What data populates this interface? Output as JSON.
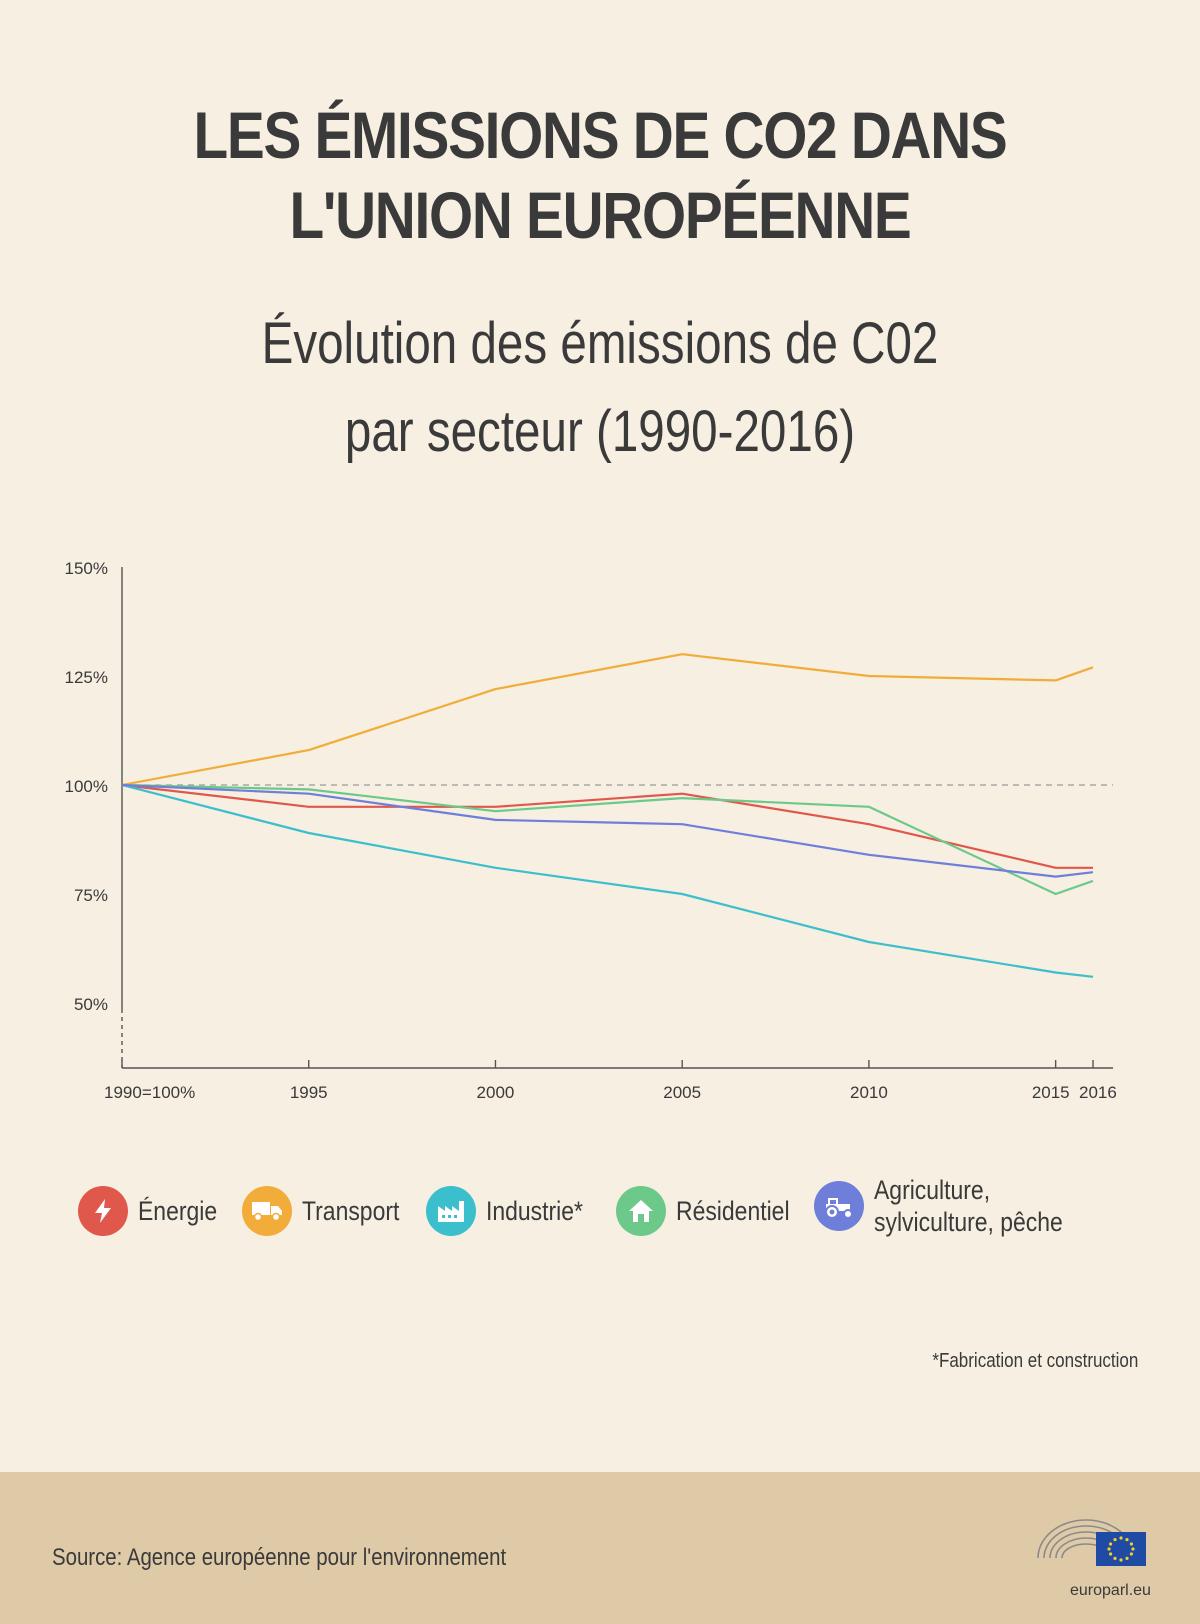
{
  "title_lines": [
    "LES ÉMISSIONS DE CO2 DANS",
    "L'UNION EUROPÉENNE"
  ],
  "subtitle_lines": [
    "Évolution des émissions de C02",
    "par secteur (1990-2016)"
  ],
  "chart_data": {
    "type": "line",
    "title": "Évolution des émissions de C02 par secteur (1990-2016)",
    "x": [
      1990,
      1995,
      2000,
      2005,
      2010,
      2015,
      2016
    ],
    "x_tick_labels": [
      {
        "x": 1990,
        "label": "1990=100%"
      },
      {
        "x": 1995,
        "label": "1995"
      },
      {
        "x": 2000,
        "label": "2000"
      },
      {
        "x": 2005,
        "label": "2005"
      },
      {
        "x": 2010,
        "label": "2010"
      },
      {
        "x": 2015,
        "label": "2015"
      },
      {
        "x": 2016,
        "label": "2016"
      }
    ],
    "y_ticks": [
      {
        "value": 50,
        "label": "50%"
      },
      {
        "value": 75,
        "label": "75%"
      },
      {
        "value": 100,
        "label": "100%"
      },
      {
        "value": 125,
        "label": "125%"
      },
      {
        "value": 150,
        "label": "150%"
      }
    ],
    "reference_line": 100,
    "series": [
      {
        "name": "Énergie",
        "color": "#e0584b",
        "values": [
          100,
          95,
          95,
          98,
          91,
          81,
          81
        ]
      },
      {
        "name": "Transport",
        "color": "#f2ac3a",
        "values": [
          100,
          108,
          122,
          130,
          125,
          124,
          127
        ]
      },
      {
        "name": "Industrie*",
        "color": "#3cbfcc",
        "values": [
          100,
          89,
          81,
          75,
          64,
          57,
          56
        ]
      },
      {
        "name": "Résidentiel",
        "color": "#6cc98a",
        "values": [
          100,
          99,
          94,
          97,
          95,
          75,
          78
        ]
      },
      {
        "name": "Agriculture, sylviculture, pêche",
        "color": "#6f7fd9",
        "values": [
          100,
          98,
          92,
          91,
          84,
          79,
          80
        ]
      }
    ]
  },
  "legend_icons": [
    "lightning-icon",
    "truck-icon",
    "factory-icon",
    "house-icon",
    "tractor-icon"
  ],
  "footnote": "*Fabrication et construction",
  "source": "Source: Agence européenne pour l'environnement",
  "logo_text": "europarl.eu"
}
